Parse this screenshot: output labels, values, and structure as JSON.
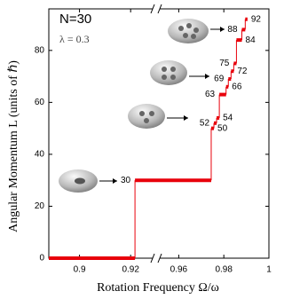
{
  "chart_data": {
    "type": "step",
    "title": "N=30",
    "subtitle": "λ = 0.3",
    "x_label": "Rotation Frequency  Ω/ω",
    "y_label": "Angular Momentum L  (units of ℏ)",
    "x": [
      0.888,
      0.9217,
      0.9744,
      0.9756,
      0.9768,
      0.978,
      0.981,
      0.982,
      0.9832,
      0.9844,
      0.9856,
      0.988,
      0.9895,
      0.9905
    ],
    "values": [
      0,
      30,
      50,
      52,
      54,
      63,
      66,
      69,
      72,
      75,
      84,
      88,
      92,
      92
    ],
    "color": "#e8000b",
    "x_segments": [
      [
        0.888,
        0.93
      ],
      [
        0.95,
        1.0
      ]
    ],
    "xticks": [
      0.9,
      0.92,
      0.96,
      0.98,
      1
    ],
    "ylim": [
      0,
      96
    ],
    "yticks": [
      0,
      20,
      40,
      60,
      80
    ]
  }
}
